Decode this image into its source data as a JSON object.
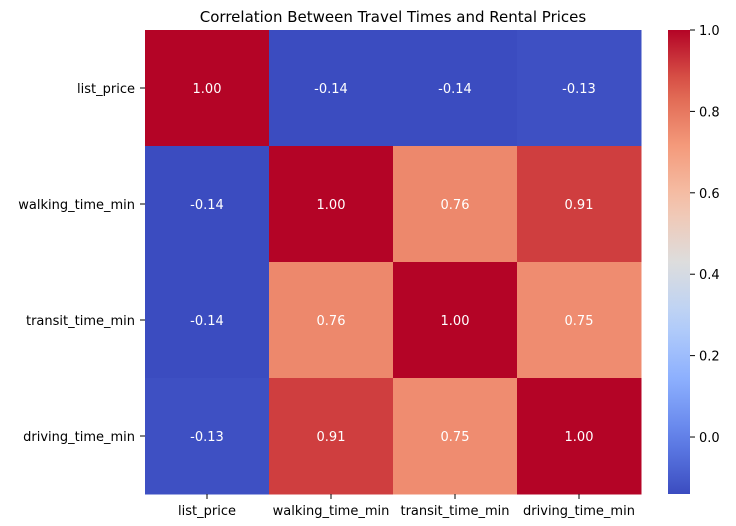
{
  "chart_data": {
    "type": "heatmap",
    "title": "Correlation Between Travel Times and Rental Prices",
    "xlabel": "",
    "ylabel": "",
    "x_categories": [
      "list_price",
      "walking_time_min",
      "transit_time_min",
      "driving_time_min"
    ],
    "y_categories": [
      "list_price",
      "walking_time_min",
      "transit_time_min",
      "driving_time_min"
    ],
    "values": [
      [
        1.0,
        -0.14,
        -0.14,
        -0.13
      ],
      [
        -0.14,
        1.0,
        0.76,
        0.91
      ],
      [
        -0.14,
        0.76,
        1.0,
        0.75
      ],
      [
        -0.13,
        0.91,
        0.75,
        1.0
      ]
    ],
    "annotations": [
      [
        "1.00",
        "-0.14",
        "-0.14",
        "-0.13"
      ],
      [
        "-0.14",
        "1.00",
        "0.76",
        "0.91"
      ],
      [
        "-0.14",
        "0.76",
        "1.00",
        "0.75"
      ],
      [
        "-0.13",
        "0.91",
        "0.75",
        "1.00"
      ]
    ],
    "colormap": "coolwarm",
    "color_range": [
      -0.14,
      1.0
    ],
    "colorbar_ticks": [
      0.0,
      0.2,
      0.4,
      0.6,
      0.8,
      1.0
    ],
    "colorbar_tick_labels": [
      "0.0",
      "0.2",
      "0.4",
      "0.6",
      "0.8",
      "1.0"
    ],
    "colorbar_position": "right",
    "annotation_color": "#ffffff"
  }
}
